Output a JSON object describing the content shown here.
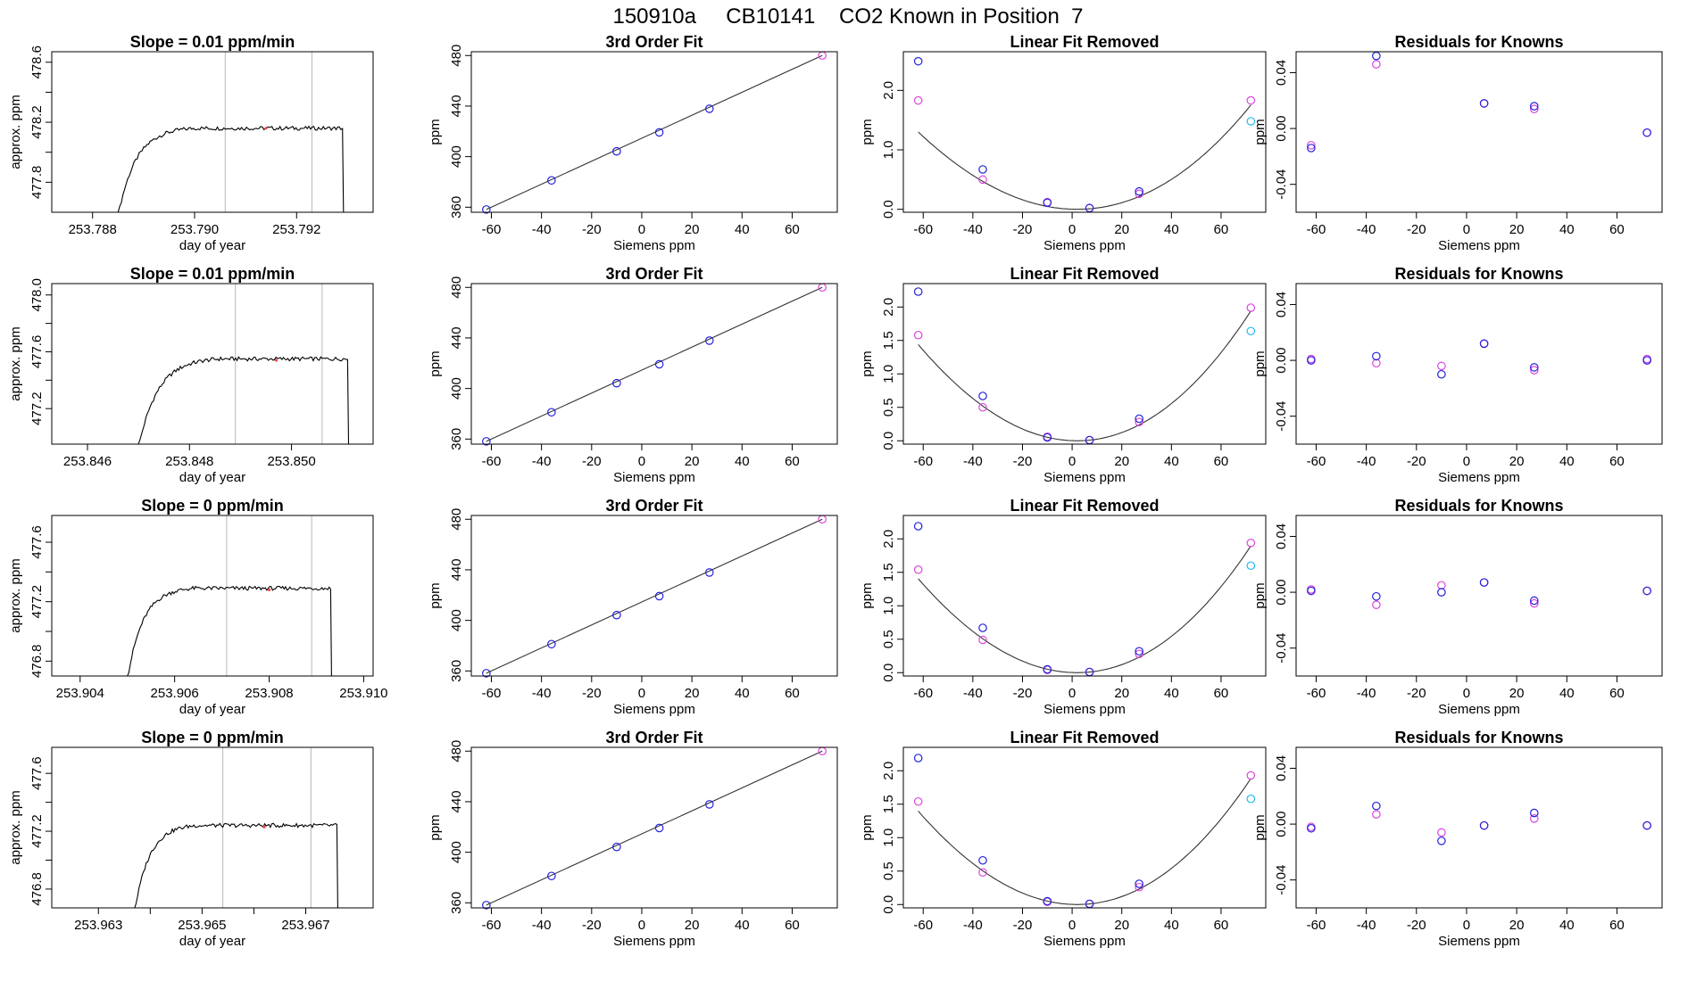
{
  "title": "150910a     CB10141    CO2 Known in Position  7",
  "colors": {
    "blue": "#2222dd",
    "magenta": "#dd44dd",
    "cyan": "#22bbee",
    "trace": "#000000",
    "marker": "#ff4444",
    "vline": "#b8b8b8"
  },
  "chart_data": {
    "type": "multi-panel",
    "x_siemens": [
      -62,
      -36,
      -10,
      7,
      27,
      72
    ],
    "rows": [
      {
        "raw": {
          "title": "Slope =  0.01  ppm/min",
          "xlabel": "day of year",
          "ylabel": "approx. ppm",
          "xlim": [
            253.7872,
            253.7935
          ],
          "ylim": [
            477.6,
            478.67
          ],
          "xticks": [
            253.788,
            253.79,
            253.792
          ],
          "xtick_labels": [
            "253.788",
            "253.790",
            "253.792"
          ],
          "yticks": [
            477.8,
            478.2,
            478.6
          ],
          "ytick_labels": [
            "477.8",
            "478.2",
            "478.6"
          ],
          "extra_yticks": [
            478.0,
            478.4
          ],
          "vlines": [
            253.7906,
            253.7923
          ],
          "trace_start": 253.7885,
          "trace_end": 253.7929,
          "plateau": 478.16,
          "rise_end": 253.79,
          "marker": [
            253.7914,
            478.16
          ]
        },
        "fit": {
          "title": "3rd Order Fit",
          "xlabel": "Siemens ppm",
          "ylabel": "ppm",
          "ylim": [
            356,
            483
          ],
          "yticks": [
            360,
            400,
            440,
            480
          ],
          "xticks": [
            -60,
            -40,
            -20,
            0,
            20,
            40,
            60
          ],
          "values": [
            358.2,
            381.2,
            404.2,
            419.2,
            437.9,
            480.0
          ]
        },
        "linear": {
          "title": "Linear Fit Removed",
          "xlabel": "Siemens ppm",
          "ylabel": "ppm",
          "ylim": [
            -0.05,
            2.65
          ],
          "yticks": [
            0.0,
            1.0,
            2.0
          ],
          "ytick_labels": [
            "0.0",
            "1.0",
            "2.0"
          ],
          "curve_k": 0.000336,
          "blue": [
            2.49,
            0.67,
            0.11,
            0.02,
            0.3,
            null
          ],
          "magenta": [
            1.83,
            0.5,
            0.12,
            0.02,
            0.26,
            1.83
          ],
          "cyan": [
            null,
            null,
            null,
            null,
            null,
            1.48
          ]
        },
        "resid": {
          "title": "Residuals for Knowns",
          "xlabel": "Siemens ppm",
          "ylim": [
            -0.06,
            0.055
          ],
          "yticks": [
            -0.04,
            0.0,
            0.04
          ],
          "ytick_labels": [
            "-0.04",
            "0.00",
            "0.04"
          ],
          "blue": [
            -0.014,
            0.052,
            null,
            0.018,
            0.016,
            -0.003
          ],
          "magenta": [
            -0.012,
            0.046,
            null,
            0.018,
            0.014,
            -0.003
          ]
        }
      },
      {
        "raw": {
          "title": "Slope =  0.01  ppm/min",
          "xlabel": "day of year",
          "ylabel": "approx. ppm",
          "xlim": [
            253.8453,
            253.8516
          ],
          "ylim": [
            476.95,
            478.08
          ],
          "xticks": [
            253.846,
            253.848,
            253.85
          ],
          "xtick_labels": [
            "253.846",
            "253.848",
            "253.850"
          ],
          "yticks": [
            477.2,
            477.6,
            478.0
          ],
          "ytick_labels": [
            "477.2",
            "477.6",
            "478.0"
          ],
          "extra_yticks": [
            477.4,
            477.8
          ],
          "vlines": [
            253.8489,
            253.8506
          ],
          "trace_start": 253.847,
          "trace_end": 253.8511,
          "plateau": 477.55,
          "rise_end": 253.8486,
          "marker": [
            253.8497,
            477.54
          ]
        },
        "fit": {
          "title": "3rd Order Fit",
          "xlabel": "Siemens ppm",
          "ylabel": "ppm",
          "ylim": [
            356,
            483
          ],
          "yticks": [
            360,
            400,
            440,
            480
          ],
          "xticks": [
            -60,
            -40,
            -20,
            0,
            20,
            40,
            60
          ],
          "values": [
            358.2,
            381.2,
            404.2,
            419.2,
            437.9,
            480.0
          ]
        },
        "linear": {
          "title": "Linear Fit Removed",
          "xlabel": "Siemens ppm",
          "ylabel": "ppm",
          "ylim": [
            -0.05,
            2.35
          ],
          "yticks": [
            0.0,
            0.5,
            1.0,
            1.5,
            2.0
          ],
          "ytick_labels": [
            "0.0",
            "0.5",
            "1.0",
            "1.5",
            "2.0"
          ],
          "curve_k": 0.000372,
          "blue": [
            2.23,
            0.67,
            0.05,
            0.01,
            0.33,
            null
          ],
          "magenta": [
            1.58,
            0.5,
            0.06,
            0.01,
            0.28,
            1.99
          ],
          "cyan": [
            null,
            null,
            null,
            null,
            null,
            1.64
          ]
        },
        "resid": {
          "title": "Residuals for Knowns",
          "xlabel": "Siemens ppm",
          "ylim": [
            -0.06,
            0.055
          ],
          "yticks": [
            -0.04,
            0.0,
            0.04
          ],
          "ytick_labels": [
            "-0.04",
            "0.00",
            "0.04"
          ],
          "blue": [
            0.0,
            0.003,
            -0.01,
            0.012,
            -0.005,
            0.0
          ],
          "magenta": [
            0.001,
            -0.002,
            -0.004,
            0.012,
            -0.007,
            0.001
          ]
        }
      },
      {
        "raw": {
          "title": "Slope =  0  ppm/min",
          "xlabel": "day of year",
          "ylabel": "approx. ppm",
          "xlim": [
            253.9034,
            253.9102
          ],
          "ylim": [
            476.7,
            477.78
          ],
          "xticks": [
            253.904,
            253.906,
            253.908,
            253.91
          ],
          "xtick_labels": [
            "253.904",
            "253.906",
            "253.908",
            "253.910"
          ],
          "yticks": [
            476.8,
            477.2,
            477.6
          ],
          "ytick_labels": [
            "476.8",
            "477.2",
            "477.6"
          ],
          "extra_yticks": [
            477.0,
            477.4
          ],
          "vlines": [
            253.9071,
            253.9089
          ],
          "trace_start": 253.905,
          "trace_end": 253.9093,
          "plateau": 477.29,
          "rise_end": 253.9064,
          "marker": [
            253.908,
            477.28
          ]
        },
        "fit": {
          "title": "3rd Order Fit",
          "xlabel": "Siemens ppm",
          "ylabel": "ppm",
          "ylim": [
            356,
            483
          ],
          "yticks": [
            360,
            400,
            440,
            480
          ],
          "xticks": [
            -60,
            -40,
            -20,
            0,
            20,
            40,
            60
          ],
          "values": [
            358.2,
            381.2,
            404.2,
            419.2,
            437.9,
            480.0
          ]
        },
        "linear": {
          "title": "Linear Fit Removed",
          "xlabel": "Siemens ppm",
          "ylabel": "ppm",
          "ylim": [
            -0.05,
            2.35
          ],
          "yticks": [
            0.0,
            0.5,
            1.0,
            1.5,
            2.0
          ],
          "ytick_labels": [
            "0.0",
            "0.5",
            "1.0",
            "1.5",
            "2.0"
          ],
          "curve_k": 0.000363,
          "blue": [
            2.19,
            0.67,
            0.05,
            0.01,
            0.32,
            null
          ],
          "magenta": [
            1.54,
            0.49,
            0.04,
            0.01,
            0.28,
            1.94
          ],
          "cyan": [
            null,
            null,
            null,
            null,
            null,
            1.6
          ]
        },
        "resid": {
          "title": "Residuals for Knowns",
          "xlabel": "Siemens ppm",
          "ylim": [
            -0.06,
            0.055
          ],
          "yticks": [
            -0.04,
            0.0,
            0.04
          ],
          "ytick_labels": [
            "-0.04",
            "0.00",
            "0.04"
          ],
          "blue": [
            0.001,
            -0.003,
            0.0,
            0.007,
            -0.006,
            0.001
          ],
          "magenta": [
            0.002,
            -0.009,
            0.005,
            0.007,
            -0.008,
            0.001
          ]
        }
      },
      {
        "raw": {
          "title": "Slope =  0  ppm/min",
          "xlabel": "day of year",
          "ylabel": "approx. ppm",
          "xlim": [
            253.9621,
            253.9683
          ],
          "ylim": [
            476.67,
            477.78
          ],
          "xticks": [
            253.963,
            253.964,
            253.965,
            253.966,
            253.967
          ],
          "xtick_labels": [
            "253.963",
            "",
            "253.965",
            "",
            "253.967"
          ],
          "yticks": [
            476.8,
            477.2,
            477.6
          ],
          "ytick_labels": [
            "476.8",
            "477.2",
            "477.6"
          ],
          "extra_yticks": [
            477.0,
            477.4
          ],
          "vlines": [
            253.9654,
            253.9671
          ],
          "trace_start": 253.9637,
          "trace_end": 253.9676,
          "plateau": 477.24,
          "rise_end": 253.9649,
          "marker": [
            253.9662,
            477.23
          ]
        },
        "fit": {
          "title": "3rd Order Fit",
          "xlabel": "Siemens ppm",
          "ylabel": "ppm",
          "ylim": [
            356,
            483
          ],
          "yticks": [
            360,
            400,
            440,
            480
          ],
          "xticks": [
            -60,
            -40,
            -20,
            0,
            20,
            40,
            60
          ],
          "values": [
            358.2,
            381.2,
            404.2,
            419.2,
            437.9,
            480.0
          ]
        },
        "linear": {
          "title": "Linear Fit Removed",
          "xlabel": "Siemens ppm",
          "ylabel": "ppm",
          "ylim": [
            -0.05,
            2.35
          ],
          "yticks": [
            0.0,
            0.5,
            1.0,
            1.5,
            2.0
          ],
          "ytick_labels": [
            "0.0",
            "0.5",
            "1.0",
            "1.5",
            "2.0"
          ],
          "curve_k": 0.000361,
          "blue": [
            2.19,
            0.66,
            0.05,
            0.01,
            0.31,
            null
          ],
          "magenta": [
            1.54,
            0.48,
            0.04,
            0.01,
            0.26,
            1.93
          ],
          "cyan": [
            null,
            null,
            null,
            null,
            null,
            1.58
          ]
        },
        "resid": {
          "title": "Residuals for Knowns",
          "xlabel": "Siemens ppm",
          "ylim": [
            -0.06,
            0.055
          ],
          "yticks": [
            -0.04,
            0.0,
            0.04
          ],
          "ytick_labels": [
            "-0.04",
            "0.00",
            "0.04"
          ],
          "blue": [
            -0.003,
            0.013,
            -0.012,
            -0.001,
            0.008,
            -0.001
          ],
          "magenta": [
            -0.002,
            0.007,
            -0.006,
            -0.001,
            0.004,
            -0.001
          ]
        }
      }
    ]
  }
}
